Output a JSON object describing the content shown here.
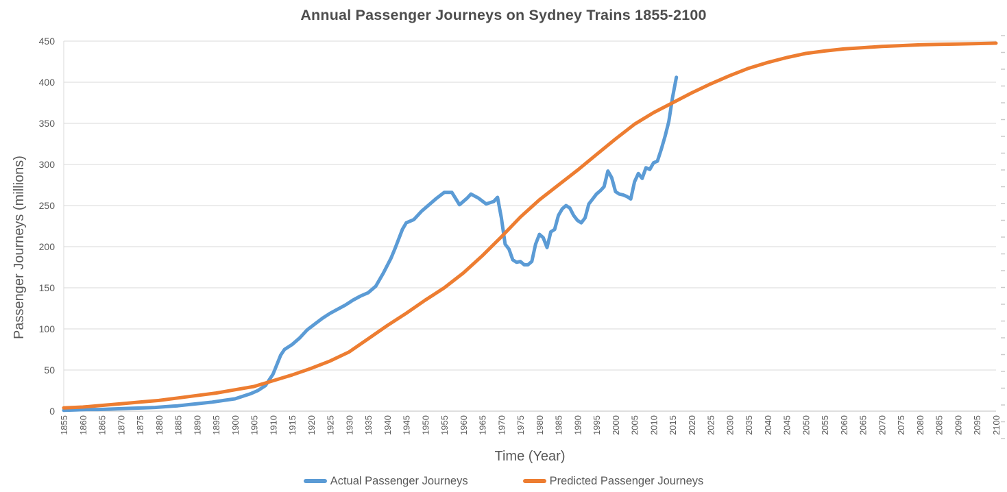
{
  "chart_data": {
    "type": "line",
    "title": "Annual Passenger Journeys on Sydney Trains 1855-2100",
    "xlabel": "Time (Year)",
    "ylabel": "Passenger Journeys (millions)",
    "x_range": [
      1855,
      2100
    ],
    "y_range": [
      0,
      450
    ],
    "grid": "horizontal",
    "legend_position": "bottom",
    "background": "#FFFFFF",
    "grid_color": "#D9D9D9",
    "axis_color": "#BFBFBF",
    "text_color": "#595959",
    "y_ticks": [
      0,
      50,
      100,
      150,
      200,
      250,
      300,
      350,
      400,
      450
    ],
    "x_ticks": [
      1855,
      1860,
      1865,
      1870,
      1875,
      1880,
      1885,
      1890,
      1895,
      1900,
      1905,
      1910,
      1915,
      1920,
      1925,
      1930,
      1935,
      1940,
      1945,
      1950,
      1955,
      1960,
      1965,
      1970,
      1975,
      1980,
      1985,
      1990,
      1995,
      2000,
      2005,
      2010,
      2015,
      2020,
      2025,
      2030,
      2035,
      2040,
      2045,
      2050,
      2055,
      2060,
      2065,
      2070,
      2075,
      2080,
      2085,
      2090,
      2095,
      2100
    ],
    "series": [
      {
        "name": "Actual Passenger Journeys",
        "color": "#5B9BD5",
        "points": [
          [
            1855,
            1
          ],
          [
            1858,
            1.5
          ],
          [
            1861,
            2
          ],
          [
            1864,
            2
          ],
          [
            1867,
            2.5
          ],
          [
            1870,
            3
          ],
          [
            1873,
            3.5
          ],
          [
            1876,
            4
          ],
          [
            1879,
            4.5
          ],
          [
            1882,
            5.5
          ],
          [
            1885,
            6.5
          ],
          [
            1888,
            8
          ],
          [
            1891,
            9.5
          ],
          [
            1894,
            11
          ],
          [
            1897,
            13
          ],
          [
            1900,
            15
          ],
          [
            1902,
            18
          ],
          [
            1904,
            21
          ],
          [
            1906,
            25
          ],
          [
            1908,
            31
          ],
          [
            1910,
            45
          ],
          [
            1912,
            68
          ],
          [
            1913,
            75
          ],
          [
            1915,
            81
          ],
          [
            1917,
            89
          ],
          [
            1919,
            99
          ],
          [
            1921,
            106
          ],
          [
            1923,
            113
          ],
          [
            1925,
            119
          ],
          [
            1927,
            124
          ],
          [
            1929,
            129
          ],
          [
            1931,
            135
          ],
          [
            1933,
            140
          ],
          [
            1935,
            144
          ],
          [
            1937,
            152
          ],
          [
            1939,
            168
          ],
          [
            1941,
            186
          ],
          [
            1942,
            197
          ],
          [
            1944,
            221
          ],
          [
            1945,
            229
          ],
          [
            1947,
            233
          ],
          [
            1949,
            243
          ],
          [
            1951,
            251
          ],
          [
            1953,
            259
          ],
          [
            1955,
            266
          ],
          [
            1957,
            266
          ],
          [
            1959,
            251
          ],
          [
            1961,
            259
          ],
          [
            1962,
            264
          ],
          [
            1964,
            259
          ],
          [
            1966,
            252
          ],
          [
            1968,
            255
          ],
          [
            1969,
            260
          ],
          [
            1970,
            235
          ],
          [
            1971,
            203
          ],
          [
            1972,
            197
          ],
          [
            1973,
            184
          ],
          [
            1974,
            181
          ],
          [
            1975,
            182
          ],
          [
            1976,
            178
          ],
          [
            1977,
            178
          ],
          [
            1978,
            182
          ],
          [
            1979,
            203
          ],
          [
            1980,
            215
          ],
          [
            1981,
            211
          ],
          [
            1982,
            199
          ],
          [
            1983,
            218
          ],
          [
            1984,
            221
          ],
          [
            1985,
            238
          ],
          [
            1986,
            246
          ],
          [
            1987,
            250
          ],
          [
            1988,
            247
          ],
          [
            1989,
            238
          ],
          [
            1990,
            232
          ],
          [
            1991,
            229
          ],
          [
            1992,
            235
          ],
          [
            1993,
            252
          ],
          [
            1994,
            258
          ],
          [
            1995,
            264
          ],
          [
            1996,
            268
          ],
          [
            1997,
            273
          ],
          [
            1998,
            292
          ],
          [
            1999,
            284
          ],
          [
            2000,
            267
          ],
          [
            2001,
            264
          ],
          [
            2002,
            263
          ],
          [
            2003,
            261
          ],
          [
            2004,
            258
          ],
          [
            2005,
            279
          ],
          [
            2006,
            289
          ],
          [
            2007,
            283
          ],
          [
            2008,
            296
          ],
          [
            2009,
            294
          ],
          [
            2010,
            302
          ],
          [
            2011,
            304
          ],
          [
            2012,
            318
          ],
          [
            2013,
            334
          ],
          [
            2014,
            352
          ],
          [
            2015,
            382
          ],
          [
            2016,
            406
          ]
        ]
      },
      {
        "name": "Predicted Passenger Journeys",
        "color": "#ED7D31",
        "points": [
          [
            1855,
            4
          ],
          [
            1860,
            5
          ],
          [
            1865,
            7
          ],
          [
            1870,
            9
          ],
          [
            1875,
            11
          ],
          [
            1880,
            13
          ],
          [
            1885,
            16
          ],
          [
            1890,
            19
          ],
          [
            1895,
            22
          ],
          [
            1900,
            26
          ],
          [
            1905,
            30
          ],
          [
            1910,
            37
          ],
          [
            1915,
            44
          ],
          [
            1920,
            52
          ],
          [
            1925,
            61
          ],
          [
            1930,
            72
          ],
          [
            1935,
            88
          ],
          [
            1940,
            104
          ],
          [
            1945,
            119
          ],
          [
            1950,
            135
          ],
          [
            1955,
            150
          ],
          [
            1960,
            168
          ],
          [
            1965,
            189
          ],
          [
            1970,
            212
          ],
          [
            1975,
            236
          ],
          [
            1980,
            257
          ],
          [
            1985,
            275
          ],
          [
            1990,
            293
          ],
          [
            1995,
            312
          ],
          [
            2000,
            331
          ],
          [
            2005,
            349
          ],
          [
            2010,
            363
          ],
          [
            2015,
            375
          ],
          [
            2020,
            387
          ],
          [
            2025,
            398
          ],
          [
            2030,
            408
          ],
          [
            2035,
            417
          ],
          [
            2040,
            424
          ],
          [
            2045,
            430
          ],
          [
            2050,
            435
          ],
          [
            2055,
            438
          ],
          [
            2060,
            440.5
          ],
          [
            2065,
            442
          ],
          [
            2070,
            443.5
          ],
          [
            2075,
            444.5
          ],
          [
            2080,
            445.5
          ],
          [
            2085,
            446
          ],
          [
            2090,
            446.5
          ],
          [
            2095,
            447
          ],
          [
            2100,
            447.5
          ]
        ]
      }
    ]
  }
}
